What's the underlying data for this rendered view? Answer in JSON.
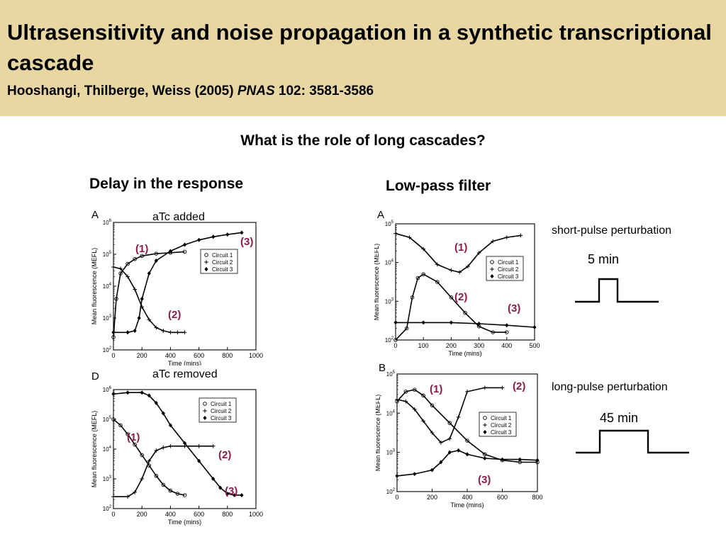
{
  "header": {
    "title": "Ultrasensitivity and noise propagation in a synthetic transcriptional cascade",
    "citation_authors": "Hooshangi, Thilberge, Weiss (2005) ",
    "citation_journal": "PNAS",
    "citation_rest": " 102: 3581-3586"
  },
  "question": "What is the role of long cascades?",
  "sections": {
    "left": "Delay in the response",
    "right": "Low-pass filter"
  },
  "notes": {
    "atc_added": "aTc added",
    "atc_removed": "aTc removed",
    "short_pulse": "short-pulse perturbation",
    "short_duration": "5 min",
    "long_pulse": "long-pulse perturbation",
    "long_duration": "45 min"
  },
  "accent_color": "#8b1a4a",
  "legend_labels": [
    "Circuit 1",
    "Circuit 2",
    "Circuit 3"
  ],
  "chart_data": [
    {
      "panel": "A",
      "type": "line",
      "xlabel": "Time (mins)",
      "ylabel": "Mean fluorescence (MEFL)",
      "xlim": [
        0,
        1000
      ],
      "yscale": "log",
      "ylim_exp": [
        2,
        6
      ],
      "xticks": [
        "0",
        "200",
        "400",
        "600",
        "800",
        "1000"
      ],
      "yticks_exp": [
        "2",
        "3",
        "4",
        "5",
        "6"
      ],
      "legend_position": "right",
      "annotations": [
        "(1)",
        "(2)",
        "(3)"
      ],
      "series": [
        {
          "x": [
            0,
            20,
            50,
            100,
            150,
            200,
            300,
            400,
            500
          ],
          "y_exp": [
            2.4,
            3.6,
            4.4,
            4.7,
            4.85,
            4.95,
            5.02,
            5.05,
            5.08
          ]
        },
        {
          "x": [
            0,
            50,
            100,
            150,
            200,
            250,
            300,
            350,
            400,
            450,
            500
          ],
          "y_exp": [
            4.6,
            4.55,
            4.3,
            3.9,
            3.35,
            2.95,
            2.7,
            2.6,
            2.55,
            2.55,
            2.55
          ]
        },
        {
          "x": [
            0,
            100,
            150,
            180,
            200,
            250,
            300,
            400,
            500,
            600,
            700,
            800,
            900
          ],
          "y_exp": [
            2.55,
            2.55,
            2.6,
            3.0,
            3.6,
            4.4,
            4.8,
            5.1,
            5.3,
            5.45,
            5.55,
            5.62,
            5.68
          ]
        }
      ]
    },
    {
      "panel": "D",
      "type": "line",
      "xlabel": "Time (mins)",
      "ylabel": "Mean fluorescence (MEFL)",
      "xlim": [
        0,
        1000
      ],
      "yscale": "log",
      "ylim_exp": [
        2,
        6
      ],
      "xticks": [
        "0",
        "200",
        "400",
        "600",
        "800",
        "1000"
      ],
      "yticks_exp": [
        "2",
        "3",
        "4",
        "5",
        "6"
      ],
      "legend_position": "top-right",
      "annotations": [
        "(1)",
        "(2)",
        "(3)"
      ],
      "series": [
        {
          "x": [
            0,
            50,
            100,
            150,
            200,
            250,
            300,
            350,
            400,
            450,
            500
          ],
          "y_exp": [
            5.0,
            4.8,
            4.5,
            4.15,
            3.8,
            3.45,
            3.1,
            2.8,
            2.6,
            2.5,
            2.45
          ]
        },
        {
          "x": [
            0,
            100,
            150,
            200,
            250,
            300,
            350,
            400,
            500,
            600,
            700
          ],
          "y_exp": [
            2.4,
            2.4,
            2.55,
            3.0,
            3.6,
            3.95,
            4.05,
            4.1,
            4.1,
            4.1,
            4.1
          ]
        },
        {
          "x": [
            0,
            100,
            200,
            250,
            300,
            350,
            400,
            500,
            600,
            700,
            750,
            800,
            850,
            900
          ],
          "y_exp": [
            5.85,
            5.9,
            5.9,
            5.8,
            5.55,
            5.2,
            4.8,
            4.2,
            3.6,
            3.0,
            2.7,
            2.5,
            2.45,
            2.45
          ]
        }
      ]
    },
    {
      "panel": "A",
      "type": "line",
      "xlabel": "Time (mins)",
      "ylabel": "Mean fluorescence (MEFL)",
      "xlim": [
        0,
        500
      ],
      "yscale": "log",
      "ylim_exp": [
        2,
        5
      ],
      "xticks": [
        "0",
        "100",
        "200",
        "300",
        "400",
        "500"
      ],
      "yticks_exp": [
        "2",
        "3",
        "4",
        "5"
      ],
      "legend_position": "right",
      "annotations": [
        "(1)",
        "(2)",
        "(3)"
      ],
      "series": [
        {
          "x": [
            0,
            40,
            60,
            80,
            100,
            150,
            200,
            250,
            300,
            350,
            400
          ],
          "y_exp": [
            2.0,
            2.3,
            3.1,
            3.6,
            3.7,
            3.5,
            3.1,
            2.7,
            2.35,
            2.2,
            2.2
          ]
        },
        {
          "x": [
            0,
            50,
            100,
            150,
            200,
            230,
            260,
            300,
            350,
            400,
            450
          ],
          "y_exp": [
            4.75,
            4.65,
            4.35,
            3.95,
            3.8,
            3.75,
            3.9,
            4.25,
            4.55,
            4.65,
            4.7
          ]
        },
        {
          "x": [
            0,
            100,
            200,
            300,
            400,
            500
          ],
          "y_exp": [
            2.45,
            2.45,
            2.45,
            2.42,
            2.38,
            2.33
          ]
        }
      ]
    },
    {
      "panel": "B",
      "type": "line",
      "xlabel": "Time (mins)",
      "ylabel": "Mean fluorescence (MEFL)",
      "xlim": [
        0,
        800
      ],
      "yscale": "log",
      "ylim_exp": [
        2,
        5
      ],
      "xticks": [
        "0",
        "200",
        "400",
        "600",
        "800"
      ],
      "yticks_exp": [
        "2",
        "3",
        "4",
        "5"
      ],
      "legend_position": "right",
      "annotations": [
        "(1)",
        "(2)",
        "(3)",
        "(1)"
      ],
      "series": [
        {
          "x": [
            0,
            50,
            100,
            150,
            200,
            300,
            400,
            500,
            600,
            700,
            800
          ],
          "y_exp": [
            4.3,
            4.55,
            4.6,
            4.45,
            4.2,
            3.75,
            3.3,
            2.95,
            2.8,
            2.75,
            2.75
          ]
        },
        {
          "x": [
            0,
            50,
            100,
            150,
            200,
            250,
            300,
            350,
            400,
            500,
            600
          ],
          "y_exp": [
            4.35,
            4.3,
            4.1,
            3.8,
            3.5,
            3.25,
            3.35,
            3.9,
            4.55,
            4.65,
            4.65
          ]
        },
        {
          "x": [
            0,
            100,
            200,
            250,
            300,
            350,
            400,
            500,
            600,
            700,
            800
          ],
          "y_exp": [
            2.4,
            2.45,
            2.55,
            2.75,
            3.0,
            3.05,
            2.95,
            2.85,
            2.82,
            2.82,
            2.8
          ]
        }
      ]
    }
  ]
}
